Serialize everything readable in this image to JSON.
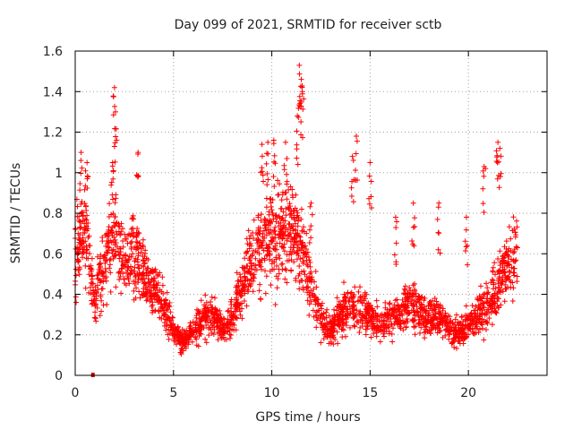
{
  "chart_data": {
    "type": "scatter",
    "title": "Day 099 of 2021, SRMTID for receiver sctb",
    "xlabel": "GPS time / hours",
    "ylabel": "SRMTID / TECUs",
    "xlim": [
      0,
      24
    ],
    "ylim": [
      0,
      1.6
    ],
    "xticks": [
      0,
      5,
      10,
      15,
      20
    ],
    "yticks": [
      0,
      0.2,
      0.4,
      0.6,
      0.8,
      1,
      1.2,
      1.4,
      1.6
    ],
    "grid": true,
    "marker": "plus",
    "color": "#ff0000",
    "profile": [
      [
        0.0,
        0.62
      ],
      [
        0.5,
        0.72
      ],
      [
        1.0,
        0.35
      ],
      [
        1.5,
        0.55
      ],
      [
        2.0,
        0.72
      ],
      [
        2.5,
        0.55
      ],
      [
        3.0,
        0.62
      ],
      [
        3.5,
        0.48
      ],
      [
        4.0,
        0.42
      ],
      [
        4.5,
        0.35
      ],
      [
        5.0,
        0.22
      ],
      [
        5.5,
        0.16
      ],
      [
        6.0,
        0.22
      ],
      [
        6.5,
        0.28
      ],
      [
        7.0,
        0.3
      ],
      [
        7.5,
        0.22
      ],
      [
        8.0,
        0.3
      ],
      [
        8.5,
        0.45
      ],
      [
        9.0,
        0.58
      ],
      [
        9.5,
        0.62
      ],
      [
        10.0,
        0.7
      ],
      [
        10.5,
        0.68
      ],
      [
        11.0,
        0.72
      ],
      [
        11.5,
        0.62
      ],
      [
        12.0,
        0.45
      ],
      [
        12.5,
        0.28
      ],
      [
        13.0,
        0.22
      ],
      [
        13.5,
        0.3
      ],
      [
        14.0,
        0.35
      ],
      [
        14.5,
        0.32
      ],
      [
        15.0,
        0.3
      ],
      [
        15.5,
        0.25
      ],
      [
        16.0,
        0.28
      ],
      [
        16.5,
        0.3
      ],
      [
        17.0,
        0.35
      ],
      [
        17.5,
        0.32
      ],
      [
        18.0,
        0.28
      ],
      [
        18.5,
        0.3
      ],
      [
        19.0,
        0.22
      ],
      [
        19.5,
        0.2
      ],
      [
        20.0,
        0.25
      ],
      [
        20.5,
        0.3
      ],
      [
        21.0,
        0.35
      ],
      [
        21.5,
        0.45
      ],
      [
        22.0,
        0.55
      ],
      [
        22.5,
        0.62
      ]
    ],
    "peaks": [
      [
        0.3,
        1.1
      ],
      [
        0.6,
        1.05
      ],
      [
        2.0,
        1.42
      ],
      [
        2.05,
        1.3
      ],
      [
        3.2,
        1.1
      ],
      [
        9.5,
        1.14
      ],
      [
        9.8,
        1.15
      ],
      [
        10.1,
        1.16
      ],
      [
        10.7,
        1.15
      ],
      [
        11.4,
        1.53
      ],
      [
        11.5,
        1.46
      ],
      [
        11.55,
        1.4
      ],
      [
        11.3,
        1.28
      ],
      [
        14.3,
        1.18
      ],
      [
        14.1,
        1.08
      ],
      [
        15.0,
        1.05
      ],
      [
        21.5,
        1.15
      ],
      [
        21.6,
        1.12
      ],
      [
        20.8,
        1.03
      ],
      [
        19.9,
        0.78
      ],
      [
        18.5,
        0.85
      ],
      [
        17.2,
        0.85
      ],
      [
        16.3,
        0.78
      ],
      [
        12.0,
        0.85
      ],
      [
        1.9,
        1.05
      ]
    ],
    "outliers": [
      [
        0.9,
        0.0
      ]
    ],
    "n_points": 2600
  }
}
